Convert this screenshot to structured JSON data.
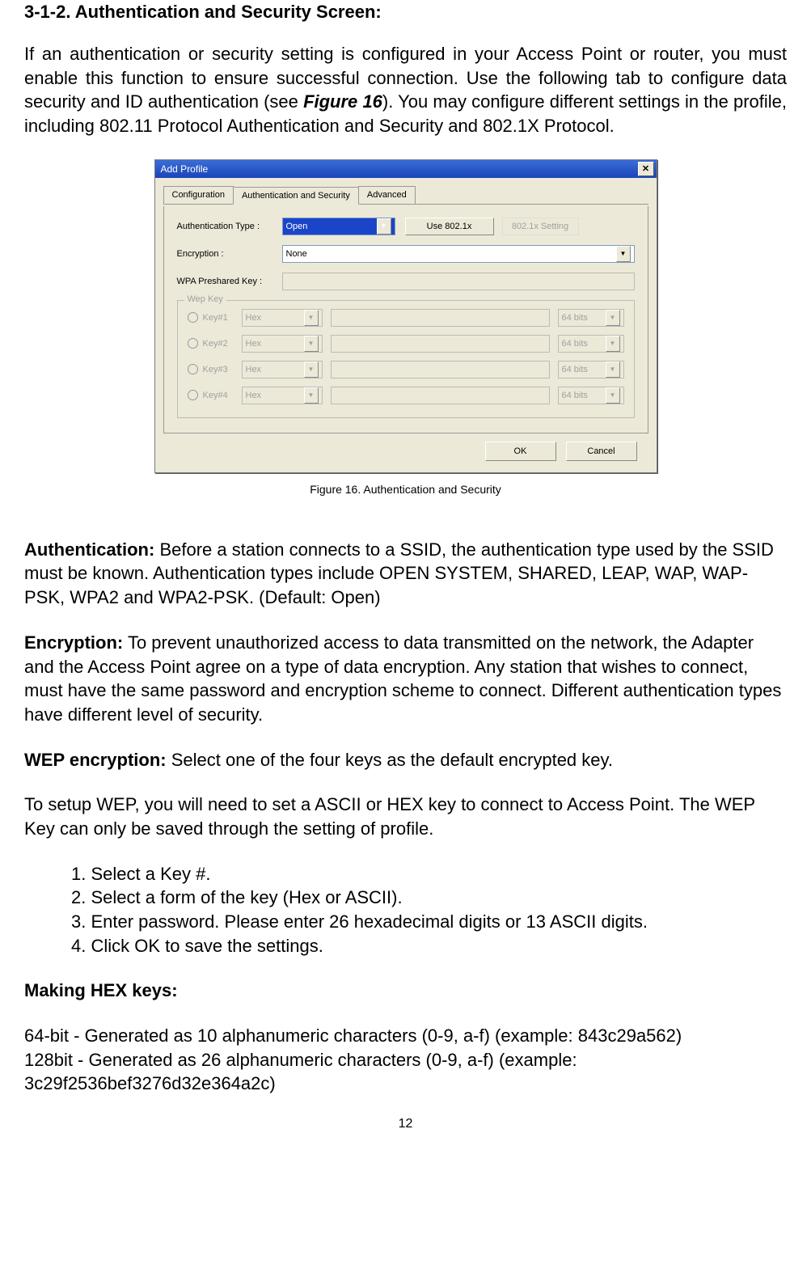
{
  "heading": "3-1-2. Authentication and Security Screen:",
  "intro": "If an authentication or security setting is configured in your Access Point or router, you must enable this function to ensure successful connection. Use the following tab to configure data security and ID authentication (see ",
  "intro_figref": "Figure 16",
  "intro_tail": "). You may configure different settings in the profile, including 802.11 Protocol Authentication and Security and 802.1X Protocol.",
  "dialog": {
    "title": "Add Profile",
    "tabs": [
      "Configuration",
      "Authentication and Security",
      "Advanced"
    ],
    "active_tab": 1,
    "auth_label": "Authentication Type :",
    "auth_value": "Open",
    "use8021x": "Use 802.1x",
    "settings8021x": "802.1x Setting",
    "enc_label": "Encryption :",
    "enc_value": "None",
    "psk_label": "WPA Preshared Key :",
    "group_title": "Wep Key",
    "keys": [
      {
        "label": "Key#1",
        "hex": "Hex",
        "bits": "64 bits"
      },
      {
        "label": "Key#2",
        "hex": "Hex",
        "bits": "64 bits"
      },
      {
        "label": "Key#3",
        "hex": "Hex",
        "bits": "64 bits"
      },
      {
        "label": "Key#4",
        "hex": "Hex",
        "bits": "64 bits"
      }
    ],
    "ok": "OK",
    "cancel": "Cancel"
  },
  "caption": "Figure 16.    Authentication and Security",
  "authentication_lead": "Authentication:",
  "authentication_body": "    Before a station connects to a SSID, the authentication type used by the SSID must be known. Authentication types include OPEN SYSTEM, SHARED, LEAP, WAP, WAP-PSK, WPA2 and WPA2-PSK. (Default: Open)",
  "encryption_lead": "Encryption:",
  "encryption_body": "    To prevent unauthorized access to data transmitted on the network, the Adapter and the Access Point agree on a type of data encryption. Any station that wishes to connect, must have the same password and encryption scheme to connect. Different authentication types have different level of security.",
  "wep_lead": "WEP encryption:",
  "wep_body": "    Select one of the four keys as the default encrypted key.",
  "wep_setup": "To setup WEP, you will need to set a ASCII or HEX key to connect to Access Point. The WEP Key can only be saved through the setting of profile.",
  "steps": [
    "1. Select a Key #.",
    "2. Select a form of the key (Hex or ASCII).",
    "3. Enter password. Please enter 26 hexadecimal digits or 13 ASCII digits.",
    "4. Click OK to save the settings."
  ],
  "hexkeys_h": "Making HEX keys:",
  "hex64": "64-bit - Generated as 10 alphanumeric characters (0-9, a-f) (example: 843c29a562)",
  "hex128_a": "128bit - Generated as 26 alphanumeric characters (0-9, a-f) (example:",
  "hex128_b": "3c29f2536bef3276d32e364a2c)",
  "pagenum": "12",
  "colors": {
    "titlebar": "#1b45b8",
    "selected": "#1b45c8",
    "panel": "#ece9d8"
  }
}
